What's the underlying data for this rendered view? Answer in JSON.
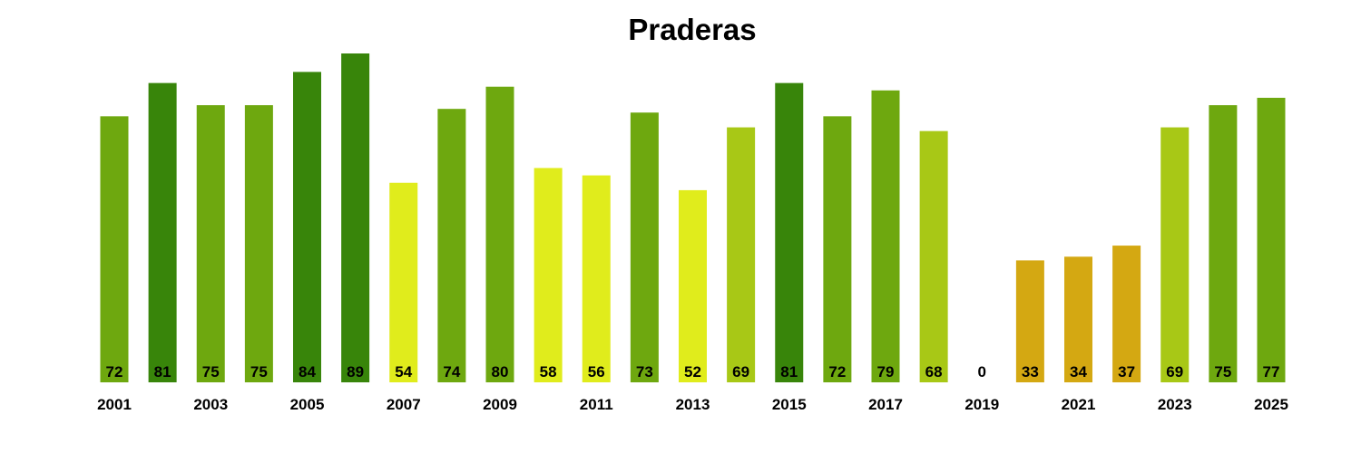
{
  "chart_data": {
    "type": "bar",
    "title": "Praderas",
    "xlabel": "",
    "ylabel": "",
    "ylim": [
      0,
      89
    ],
    "grid": false,
    "categories": [
      "2001",
      "2002",
      "2003",
      "2004",
      "2005",
      "2006",
      "2007",
      "2008",
      "2009",
      "2010",
      "2011",
      "2012",
      "2013",
      "2014",
      "2015",
      "2016",
      "2017",
      "2018",
      "2019",
      "2020",
      "2021",
      "2022",
      "2023",
      "2024",
      "2025"
    ],
    "tick_labels": [
      "2001",
      "2003",
      "2005",
      "2007",
      "2009",
      "2011",
      "2013",
      "2015",
      "2017",
      "2019",
      "2021",
      "2023",
      "2025"
    ],
    "values": [
      72,
      81,
      75,
      75,
      84,
      89,
      54,
      74,
      80,
      58,
      56,
      73,
      52,
      69,
      81,
      72,
      79,
      68,
      0,
      33,
      34,
      37,
      69,
      75,
      77
    ],
    "colors": [
      "#6ea80f",
      "#38850a",
      "#6ea80f",
      "#6ea80f",
      "#38850a",
      "#38850a",
      "#e0ec1c",
      "#6ea80f",
      "#6ea80f",
      "#e0ec1c",
      "#e0ec1c",
      "#6ea80f",
      "#e0ec1c",
      "#a8c816",
      "#38850a",
      "#6ea80f",
      "#6ea80f",
      "#a8c816",
      "#a8c816",
      "#d4a812",
      "#d4a812",
      "#d4a812",
      "#a8c816",
      "#6ea80f",
      "#6ea80f"
    ]
  }
}
